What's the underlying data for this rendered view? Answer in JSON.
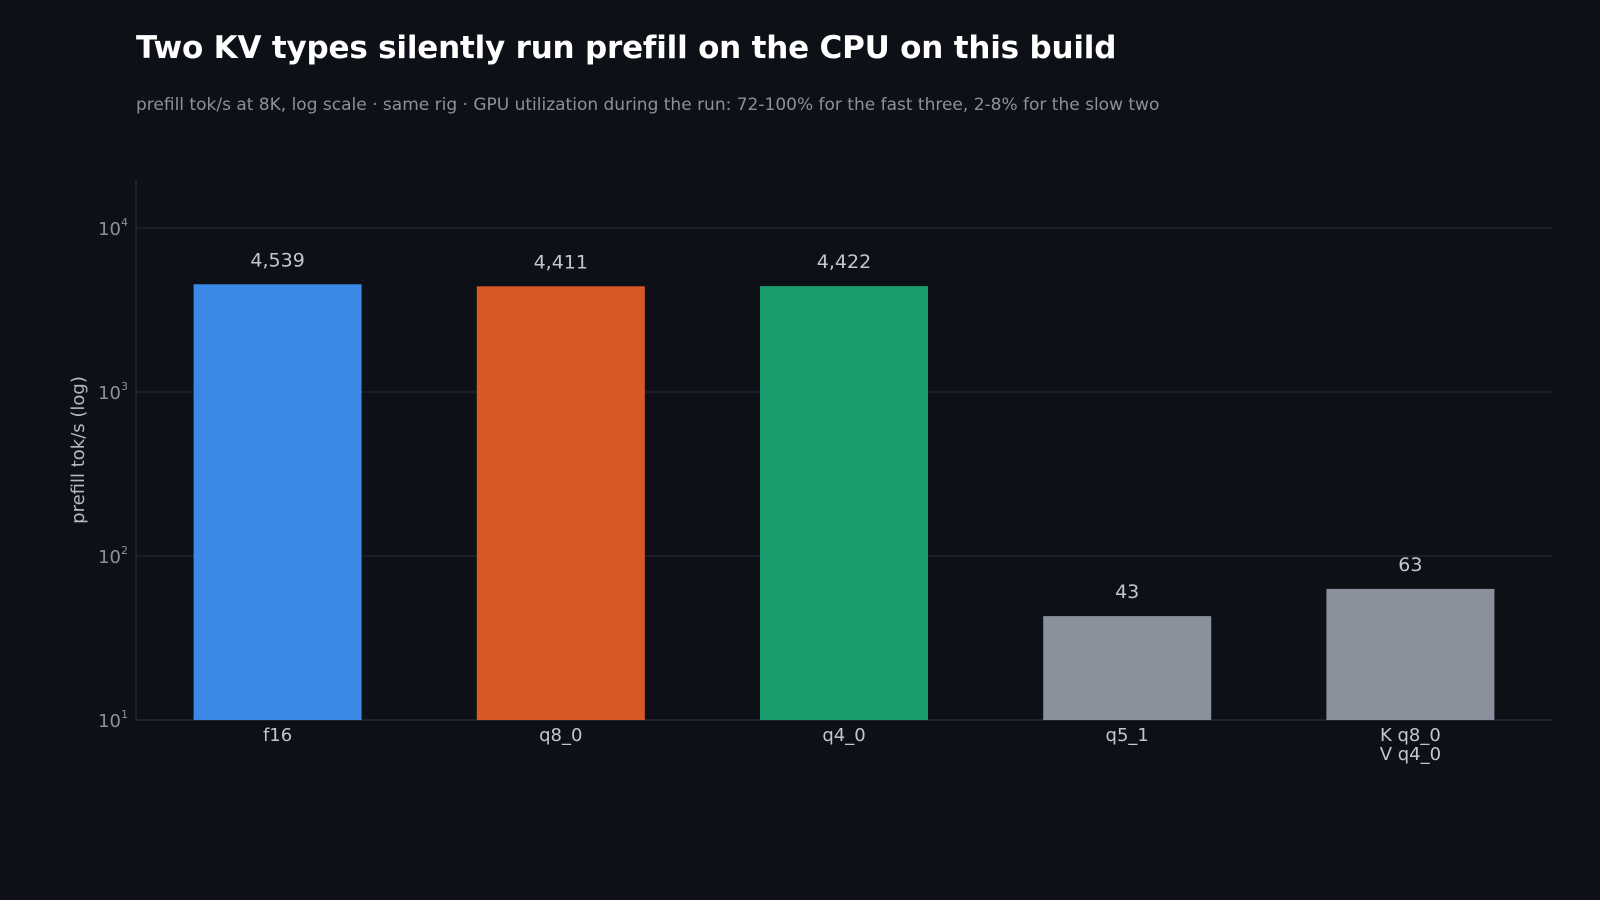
{
  "chart_data": {
    "type": "bar",
    "title": "Two KV types silently run prefill on the CPU on this build",
    "subtitle": "prefill tok/s at 8K, log scale · same rig · GPU utilization during the run: 72-100% for the fast three, 2-8% for the slow two",
    "ylabel": "prefill tok/s (log)",
    "xlabel": "",
    "yscale": "log",
    "ylim": [
      10,
      20000
    ],
    "yticks": [
      {
        "value": 10,
        "base": "10",
        "exp": "1"
      },
      {
        "value": 100,
        "base": "10",
        "exp": "2"
      },
      {
        "value": 1000,
        "base": "10",
        "exp": "3"
      },
      {
        "value": 10000,
        "base": "10",
        "exp": "4"
      }
    ],
    "grid": true,
    "legend": "none",
    "categories": [
      {
        "lines": [
          "f16"
        ]
      },
      {
        "lines": [
          "q8_0"
        ]
      },
      {
        "lines": [
          "q4_0"
        ]
      },
      {
        "lines": [
          "q5_1"
        ]
      },
      {
        "lines": [
          "K q8_0",
          "V q4_0"
        ]
      }
    ],
    "values": [
      4539,
      4411,
      4422,
      43,
      63
    ],
    "value_labels": [
      "4,539",
      "4,411",
      "4,422",
      "43",
      "63"
    ],
    "colors": [
      "#3a89e6",
      "#d95827",
      "#1a9e6e",
      "#8b919c",
      "#8b919c"
    ]
  },
  "colors": {
    "background": "#0d1017",
    "grid": "#262b35",
    "axis": "#2f3540"
  }
}
